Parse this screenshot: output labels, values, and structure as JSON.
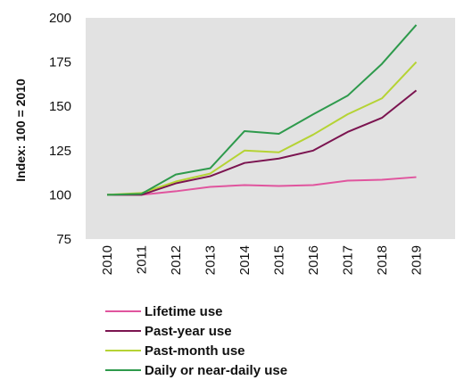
{
  "chart_data": {
    "type": "line",
    "ylabel": "Index: 100 = 2010",
    "xlabel": "",
    "ylim": [
      75,
      200
    ],
    "yticks": [
      "75",
      "100",
      "125",
      "150",
      "175",
      "200"
    ],
    "categories": [
      "2010",
      "2011",
      "2012",
      "2013",
      "2014",
      "2015",
      "2016",
      "2017",
      "2018",
      "2019"
    ],
    "grid": false,
    "legend_position": "bottom",
    "series": [
      {
        "name": "Lifetime use",
        "color": "#e0559e",
        "values": [
          100,
          100,
          102,
          104.5,
          105.5,
          105,
          105.5,
          108,
          108.5,
          110
        ]
      },
      {
        "name": "Past-year use",
        "color": "#7b1450",
        "values": [
          100,
          100,
          106.5,
          110.5,
          118,
          120.5,
          125,
          135.5,
          143.5,
          159
        ]
      },
      {
        "name": "Past-month use",
        "color": "#b5d334",
        "values": [
          100,
          101,
          107.5,
          112,
          125,
          124,
          134,
          145.5,
          154.5,
          175
        ]
      },
      {
        "name": "Daily or near-daily use",
        "color": "#2e9a4c",
        "values": [
          100,
          100.5,
          111.5,
          115,
          136,
          134.5,
          145.5,
          156,
          174,
          196
        ]
      }
    ],
    "plot_background": "#e2e2e2"
  }
}
